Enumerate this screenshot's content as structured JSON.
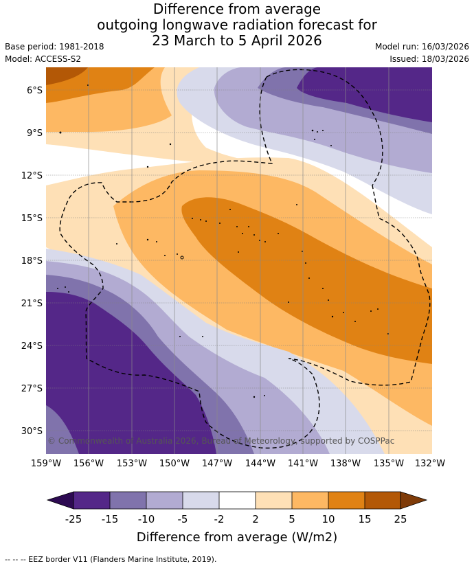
{
  "title": {
    "line1": "Difference from average",
    "line2": "outgoing longwave radiation forecast for",
    "line3": "23 March to 5 April 2026"
  },
  "meta": {
    "base_period": "Base period: 1981-2018",
    "model": "Model: ACCESS-S2",
    "model_run": "Model run: 16/03/2026",
    "issued": "Issued: 18/03/2026"
  },
  "map": {
    "lat_labels": [
      "6°S",
      "9°S",
      "12°S",
      "15°S",
      "18°S",
      "21°S",
      "24°S",
      "27°S",
      "30°S"
    ],
    "lon_labels": [
      "159°W",
      "156°W",
      "153°W",
      "150°W",
      "147°W",
      "144°W",
      "141°W",
      "138°W",
      "135°W",
      "132°W"
    ],
    "copyright": "© Commonwealth of Australia 2026, Bureau of Meteorology, supported by COSPPac"
  },
  "colorbar": {
    "labels": [
      "-25",
      "-15",
      "-10",
      "-5",
      "-2",
      "2",
      "5",
      "10",
      "15",
      "25"
    ],
    "colors": [
      "#2d0a52",
      "#542788",
      "#8073ac",
      "#b2abd2",
      "#d8daeb",
      "#ffffff",
      "#fee0b6",
      "#fdb863",
      "#e08214",
      "#b35806",
      "#7f3b08"
    ],
    "title": "Difference from average (W/m2)"
  },
  "footer": "--  --  -- EEZ border V11 (Flanders Marine Institute, 2019)."
}
